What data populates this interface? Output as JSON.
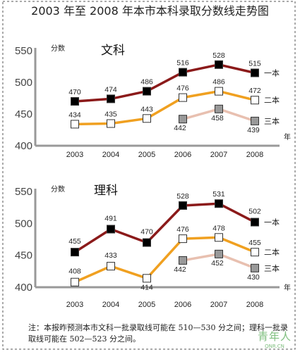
{
  "title": "2003 年至 2008 年本市本科录取分数线走势图",
  "note": "注：本报昨预测本市文科一批录取线可能在 510—530 分之间；理科一批录取线可能在 502—523 分之间。",
  "watermark": {
    "main": "青年人",
    "sub": "QNR.CN"
  },
  "colors": {
    "tier1": "#8b1a1a",
    "tier2": "#f0a020",
    "tier3": "#e8c0b0",
    "axis": "#999999",
    "marker_tier1": "#000000",
    "marker_tier2": "#ffffff",
    "marker_tier3": "#999999"
  },
  "chart_data": [
    {
      "type": "line",
      "title": "文科",
      "ylabel": "分数",
      "xlabel": "年",
      "categories": [
        "2003",
        "2004",
        "2005",
        "2006",
        "2007",
        "2008"
      ],
      "ylim": [
        400,
        550
      ],
      "yticks": [
        400,
        450,
        500,
        550
      ],
      "grid": false,
      "series": [
        {
          "name": "一本",
          "values": [
            470,
            474,
            486,
            516,
            528,
            515
          ]
        },
        {
          "name": "二本",
          "values": [
            434,
            435,
            443,
            476,
            486,
            472
          ]
        },
        {
          "name": "三本",
          "values": [
            null,
            null,
            null,
            442,
            458,
            439
          ]
        }
      ]
    },
    {
      "type": "line",
      "title": "理科",
      "ylabel": "分数",
      "xlabel": "年",
      "categories": [
        "2003",
        "2004",
        "2005",
        "2006",
        "2007",
        "2008"
      ],
      "ylim": [
        400,
        550
      ],
      "yticks": [
        400,
        450,
        500,
        550
      ],
      "grid": false,
      "series": [
        {
          "name": "一本",
          "values": [
            455,
            491,
            470,
            528,
            531,
            502
          ]
        },
        {
          "name": "二本",
          "values": [
            408,
            433,
            414,
            476,
            478,
            455
          ]
        },
        {
          "name": "三本",
          "values": [
            null,
            null,
            null,
            442,
            452,
            430
          ]
        }
      ]
    }
  ]
}
